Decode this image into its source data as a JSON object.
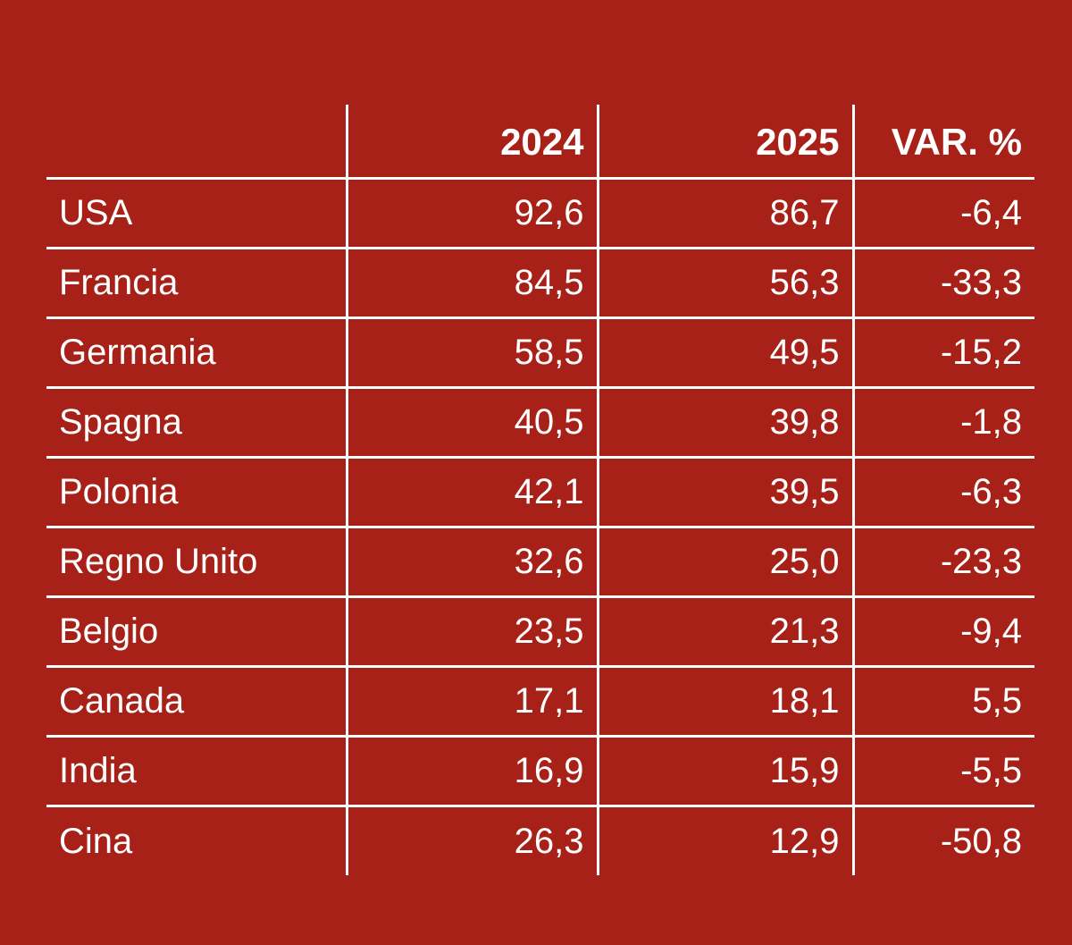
{
  "table": {
    "headers": [
      "",
      "2024",
      "2025",
      "VAR. %"
    ],
    "rows": [
      {
        "country": "USA",
        "y2024": "92,6",
        "y2025": "86,7",
        "var": "-6,4"
      },
      {
        "country": "Francia",
        "y2024": "84,5",
        "y2025": "56,3",
        "var": "-33,3"
      },
      {
        "country": "Germania",
        "y2024": "58,5",
        "y2025": "49,5",
        "var": "-15,2"
      },
      {
        "country": "Spagna",
        "y2024": "40,5",
        "y2025": "39,8",
        "var": "-1,8"
      },
      {
        "country": "Polonia",
        "y2024": "42,1",
        "y2025": "39,5",
        "var": "-6,3"
      },
      {
        "country": "Regno Unito",
        "y2024": "32,6",
        "y2025": "25,0",
        "var": "-23,3"
      },
      {
        "country": "Belgio",
        "y2024": "23,5",
        "y2025": "21,3",
        "var": "-9,4"
      },
      {
        "country": "Canada",
        "y2024": "17,1",
        "y2025": "18,1",
        "var": "5,5"
      },
      {
        "country": "India",
        "y2024": "16,9",
        "y2025": "15,9",
        "var": "-5,5"
      },
      {
        "country": "Cina",
        "y2024": "26,3",
        "y2025": "12,9",
        "var": "-50,8"
      }
    ]
  },
  "colors": {
    "background": "#a82118",
    "text": "#ffffff"
  }
}
